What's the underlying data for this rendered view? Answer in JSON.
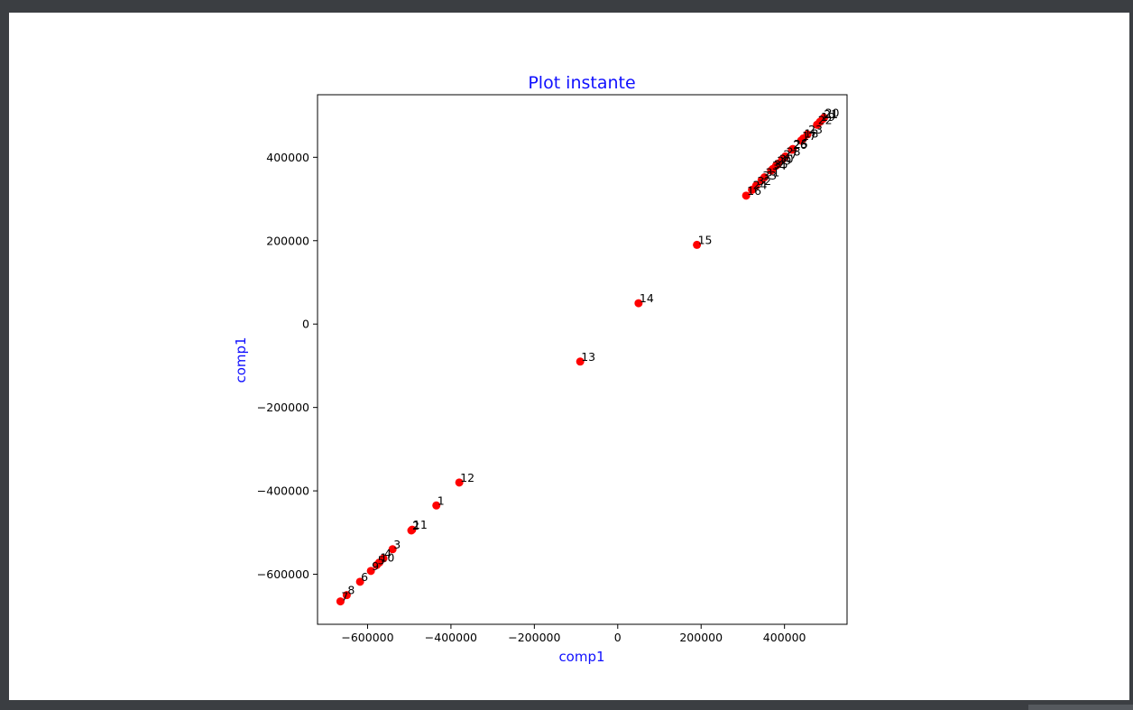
{
  "chart_data": {
    "type": "scatter",
    "title": "Plot instante",
    "xlabel": "comp1",
    "ylabel": "comp1",
    "title_color": "#1010ff",
    "label_color": "#1010ff",
    "point_color": "#ff0000",
    "xlim": [
      -720000,
      550000
    ],
    "ylim": [
      -720000,
      550000
    ],
    "xticks": [
      -600000,
      -400000,
      -200000,
      0,
      200000,
      400000
    ],
    "yticks": [
      -600000,
      -400000,
      -200000,
      0,
      200000,
      400000
    ],
    "xtick_labels": [
      "−600000",
      "−400000",
      "−200000",
      "0",
      "200000",
      "400000"
    ],
    "ytick_labels": [
      "−600000",
      "−400000",
      "−200000",
      "0",
      "200000",
      "400000"
    ],
    "grid": false,
    "points": [
      {
        "label": "1",
        "x": -435000,
        "y": -435000
      },
      {
        "label": "2",
        "x": -495000,
        "y": -495000
      },
      {
        "label": "3",
        "x": -540000,
        "y": -540000
      },
      {
        "label": "4",
        "x": -562000,
        "y": -562000
      },
      {
        "label": "5",
        "x": -578000,
        "y": -578000
      },
      {
        "label": "6",
        "x": -618000,
        "y": -618000
      },
      {
        "label": "7",
        "x": -665000,
        "y": -665000
      },
      {
        "label": "8",
        "x": -650000,
        "y": -650000
      },
      {
        "label": "9",
        "x": -592000,
        "y": -592000
      },
      {
        "label": "10",
        "x": -572000,
        "y": -572000
      },
      {
        "label": "11",
        "x": -493000,
        "y": -493000
      },
      {
        "label": "12",
        "x": -380000,
        "y": -380000
      },
      {
        "label": "13",
        "x": -90000,
        "y": -90000
      },
      {
        "label": "14",
        "x": 50000,
        "y": 50000
      },
      {
        "label": "15",
        "x": 190000,
        "y": 190000
      },
      {
        "label": "16",
        "x": 308000,
        "y": 308000
      },
      {
        "label": "17",
        "x": 440000,
        "y": 440000
      },
      {
        "label": "18",
        "x": 445000,
        "y": 445000
      },
      {
        "label": "19",
        "x": 485000,
        "y": 485000
      },
      {
        "label": "20",
        "x": 495000,
        "y": 495000
      },
      {
        "label": "21",
        "x": 492000,
        "y": 492000
      },
      {
        "label": "22",
        "x": 478000,
        "y": 478000
      },
      {
        "label": "23",
        "x": 455000,
        "y": 455000
      },
      {
        "label": "24",
        "x": 322000,
        "y": 322000
      },
      {
        "label": "25",
        "x": 420000,
        "y": 420000
      },
      {
        "label": "26",
        "x": 418000,
        "y": 418000
      },
      {
        "label": "27",
        "x": 395000,
        "y": 395000
      },
      {
        "label": "28",
        "x": 402000,
        "y": 402000
      },
      {
        "label": "29",
        "x": 380000,
        "y": 380000
      },
      {
        "label": "30",
        "x": 385000,
        "y": 385000
      },
      {
        "label": "31",
        "x": 352000,
        "y": 352000
      },
      {
        "label": "32",
        "x": 332000,
        "y": 332000
      },
      {
        "label": "33",
        "x": 345000,
        "y": 345000
      },
      {
        "label": "34",
        "x": 368000,
        "y": 368000
      },
      {
        "label": "35",
        "x": 372000,
        "y": 372000
      }
    ]
  }
}
